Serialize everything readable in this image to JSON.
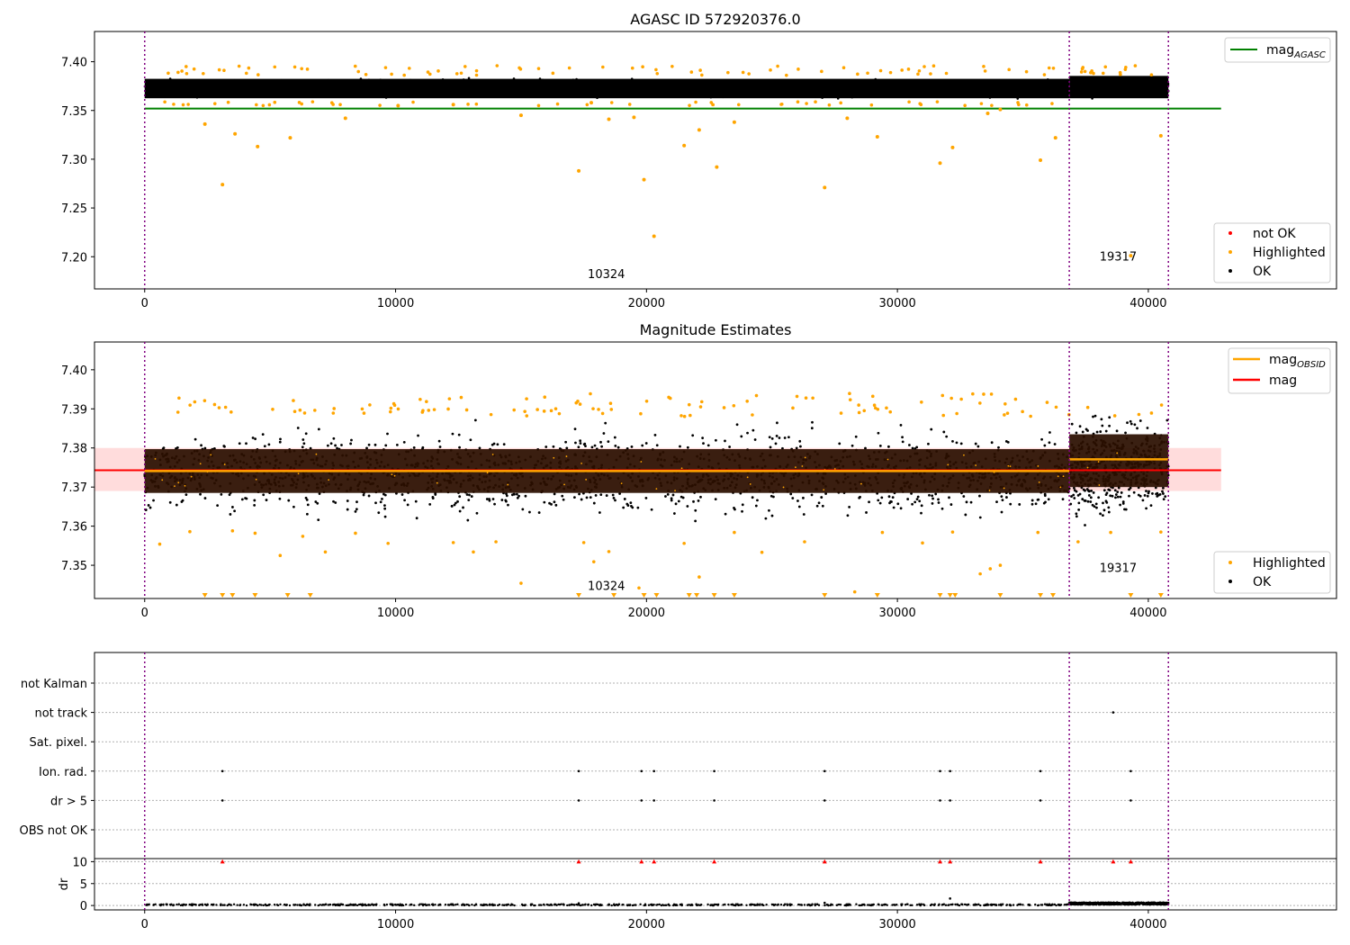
{
  "figure": {
    "title1": "AGASC ID 572920376.0",
    "title2": "Magnitude Estimates"
  },
  "chart_data": [
    {
      "type": "scatter",
      "title": "AGASC ID 572920376.0",
      "xlim": [
        -2000,
        47500
      ],
      "ylim": [
        7.167,
        7.431
      ],
      "x_ticks": [
        0,
        10000,
        20000,
        30000,
        40000
      ],
      "y_ticks": [
        7.2,
        7.25,
        7.3,
        7.35,
        7.4
      ],
      "y_tick_labels": [
        "7.20",
        "7.25",
        "7.30",
        "7.35",
        "7.40"
      ],
      "obs_boundaries": [
        0,
        36850,
        40800
      ],
      "obs_labels": [
        {
          "text": "10324",
          "x": 18400,
          "y": 7.178
        },
        {
          "text": "19317",
          "x": 38800,
          "y": 7.196
        }
      ],
      "reference_line": {
        "name": "mag_AGASC",
        "y": 7.352,
        "x_range": [
          0,
          42900
        ],
        "color": "#008000"
      },
      "ok_band": [
        {
          "x_range": [
            0,
            36850
          ],
          "y_range": [
            7.357,
            7.388
          ]
        },
        {
          "x_range": [
            36850,
            40800
          ],
          "y_range": [
            7.357,
            7.391
          ]
        }
      ],
      "highlighted_points": {
        "x": [
          2400,
          3100,
          3600,
          4500,
          5800,
          8000,
          10100,
          12300,
          15000,
          17300,
          17800,
          18500,
          19500,
          19900,
          20300,
          21500,
          22100,
          22800,
          23500,
          27100,
          28000,
          29200,
          31700,
          32200,
          33600,
          34100,
          35700,
          36300,
          39300,
          40500
        ],
        "y": [
          7.336,
          7.274,
          7.326,
          7.313,
          7.322,
          7.342,
          7.355,
          7.356,
          7.345,
          7.288,
          7.358,
          7.341,
          7.343,
          7.279,
          7.221,
          7.314,
          7.33,
          7.292,
          7.338,
          7.271,
          7.342,
          7.323,
          7.296,
          7.312,
          7.347,
          7.351,
          7.299,
          7.322,
          7.201,
          7.324
        ]
      },
      "legend": {
        "upper_right": [
          {
            "label": "mag",
            "subscript": "AGASC",
            "color": "#008000",
            "marker": "line"
          }
        ],
        "lower_right": [
          {
            "label": "not OK",
            "color": "#ff0000",
            "marker": "dot"
          },
          {
            "label": "Highlighted",
            "color": "#ffa500",
            "marker": "dot"
          },
          {
            "label": "OK",
            "color": "#000000",
            "marker": "dot"
          }
        ]
      }
    },
    {
      "type": "scatter",
      "title": "Magnitude Estimates",
      "xlim": [
        -2000,
        47500
      ],
      "ylim": [
        7.3415,
        7.4071
      ],
      "x_ticks": [
        0,
        10000,
        20000,
        30000,
        40000
      ],
      "y_ticks": [
        7.35,
        7.36,
        7.37,
        7.38,
        7.39,
        7.4
      ],
      "y_tick_labels": [
        "7.35",
        "7.36",
        "7.37",
        "7.38",
        "7.39",
        "7.40"
      ],
      "obs_boundaries": [
        0,
        36850,
        40800
      ],
      "obs_labels": [
        {
          "text": "10324",
          "x": 18400,
          "y": 7.3437
        },
        {
          "text": "19317",
          "x": 38800,
          "y": 7.3483
        }
      ],
      "mag_line": {
        "name": "mag",
        "y": 7.3743,
        "x_range": [
          -2000,
          42900
        ],
        "color": "#ff0000"
      },
      "mag_band": {
        "y_range": [
          7.369,
          7.38
        ],
        "x_range": [
          -2000,
          42900
        ],
        "color": "#ffc0c0"
      },
      "obs_mags": [
        {
          "name": "mag_OBSID",
          "x_range": [
            0,
            36850
          ],
          "y": 7.3741,
          "dense_range": [
            7.3685,
            7.3797
          ]
        },
        {
          "name": "mag_OBSID",
          "x_range": [
            36850,
            40800
          ],
          "y": 7.3771,
          "dense_range": [
            7.37,
            7.3835
          ]
        }
      ],
      "ok_scatter_range": [
        {
          "x_range": [
            0,
            36850
          ],
          "y_range": [
            7.356,
            7.391
          ]
        },
        {
          "x_range": [
            36850,
            40800
          ],
          "y_range": [
            7.3545,
            7.3955
          ]
        }
      ],
      "highlighted_points": {
        "x": [
          600,
          1800,
          3500,
          4400,
          5400,
          6300,
          7200,
          8400,
          9700,
          12300,
          13100,
          14000,
          15000,
          17500,
          17900,
          18500,
          19700,
          21500,
          22100,
          23500,
          24600,
          26300,
          28300,
          29400,
          31000,
          32200,
          33300,
          33700,
          34100,
          35600,
          37200,
          38500,
          40500
        ],
        "y": [
          7.3554,
          7.3586,
          7.3588,
          7.3582,
          7.3525,
          7.3574,
          7.3534,
          7.3582,
          7.3556,
          7.3558,
          7.3534,
          7.356,
          7.3454,
          7.3558,
          7.3509,
          7.3535,
          7.3442,
          7.3556,
          7.347,
          7.3584,
          7.3533,
          7.356,
          7.3432,
          7.3584,
          7.3557,
          7.3585,
          7.3478,
          7.3491,
          7.35,
          7.3584,
          7.356,
          7.3584,
          7.3585
        ]
      },
      "below_range_markers_x": [
        2400,
        3100,
        3500,
        4400,
        5700,
        6600,
        17300,
        18700,
        19900,
        20400,
        21700,
        22000,
        22700,
        23500,
        27100,
        29200,
        31700,
        32100,
        32300,
        34100,
        35700,
        36200,
        39300,
        40500
      ],
      "legend": {
        "upper_right": [
          {
            "label": "mag",
            "subscript": "OBSID",
            "color": "#ffa500",
            "marker": "line"
          },
          {
            "label": "mag",
            "subscript": "",
            "color": "#ff0000",
            "marker": "line"
          }
        ],
        "lower_right": [
          {
            "label": "Highlighted",
            "color": "#ffa500",
            "marker": "dot"
          },
          {
            "label": "OK",
            "color": "#000000",
            "marker": "dot"
          }
        ]
      }
    },
    {
      "type": "scatter",
      "title": "",
      "xlim": [
        -2000,
        47500
      ],
      "categories": [
        "not Kalman",
        "not track",
        "Sat. pixel.",
        "Ion. rad.",
        "dr > 5",
        "OBS not OK"
      ],
      "flag_points": [
        {
          "category": "not track",
          "x": [
            38600
          ]
        },
        {
          "category": "Ion. rad.",
          "x": [
            3100,
            17300,
            19800,
            20300,
            22700,
            27100,
            31700,
            32100,
            35700,
            39300
          ]
        },
        {
          "category": "dr > 5",
          "x": [
            3100,
            17300,
            19800,
            20300,
            22700,
            27100,
            31700,
            32100,
            35700,
            39300
          ]
        }
      ],
      "obs_boundaries": [
        0,
        36850,
        40800
      ]
    },
    {
      "type": "scatter",
      "title": "",
      "ylabel": "dr",
      "xlim": [
        -2000,
        47500
      ],
      "ylim": [
        -1,
        10.7
      ],
      "x_ticks": [
        0,
        10000,
        20000,
        30000,
        40000
      ],
      "y_ticks": [
        0,
        5,
        10
      ],
      "y_tick_labels": [
        "0",
        "5",
        "10"
      ],
      "clipped_markers_x": [
        3100,
        17300,
        19800,
        20300,
        22700,
        27100,
        31700,
        32100,
        35700,
        38600,
        39300
      ],
      "dr_baseline": [
        {
          "x_range": [
            0,
            36850
          ],
          "y_range": [
            0,
            0.3
          ]
        },
        {
          "x_range": [
            36850,
            40800
          ],
          "y_range": [
            0.2,
            0.7
          ]
        }
      ],
      "dr_outliers": {
        "x": [
          32100,
          27100,
          17300
        ],
        "y": [
          1.6,
          0.6,
          0.5
        ]
      },
      "obs_boundaries": [
        0,
        36850,
        40800
      ]
    }
  ]
}
